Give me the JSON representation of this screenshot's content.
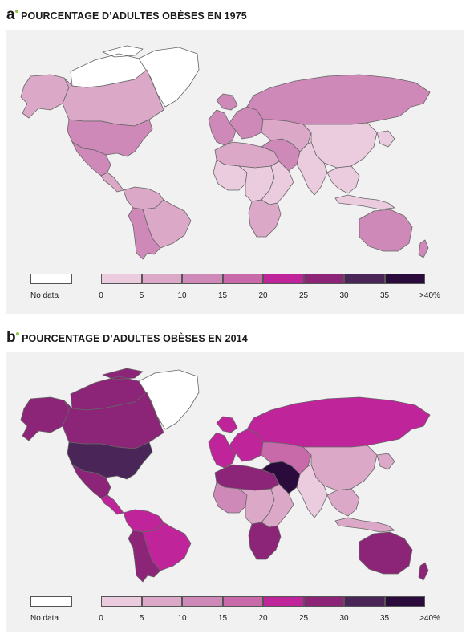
{
  "panels": [
    {
      "letter": "a",
      "title": "POURCENTAGE D’ADULTES OBÈSES EN 1975",
      "year": 1975,
      "regions": {
        "north-america-north": "nodata",
        "greenland": "nodata",
        "alaska": 1,
        "canada": 1,
        "usa": 2,
        "mexico": 2,
        "central-america": 1,
        "south-america-north": 1,
        "brazil": 1,
        "south-america-south": 2,
        "western-europe": 2,
        "eastern-europe": 2,
        "russia": 2,
        "north-africa": 1,
        "west-africa": 0,
        "central-africa": 0,
        "east-africa": 0,
        "southern-africa": 1,
        "middle-east": 2,
        "central-asia": 1,
        "china": 0,
        "india": 0,
        "southeast-asia": 0,
        "indonesia": 0,
        "australia": 2,
        "new-zealand": 2
      }
    },
    {
      "letter": "b",
      "title": "POURCENTAGE D’ADULTES OBÈSES EN 2014",
      "year": 2014,
      "regions": {
        "north-america-north": 5,
        "greenland": "nodata",
        "alaska": 5,
        "canada": 5,
        "usa": 6,
        "mexico": 5,
        "central-america": 4,
        "south-america-north": 4,
        "brazil": 4,
        "south-america-south": 5,
        "western-europe": 4,
        "eastern-europe": 4,
        "russia": 4,
        "north-africa": 5,
        "west-africa": 2,
        "central-africa": 1,
        "east-africa": 1,
        "southern-africa": 5,
        "middle-east": 7,
        "central-asia": 3,
        "china": 1,
        "india": 0,
        "southeast-asia": 1,
        "indonesia": 1,
        "australia": 5,
        "new-zealand": 5
      }
    }
  ],
  "legend": {
    "nodata_label": "No data",
    "nodata_color": "#ffffff",
    "colors": [
      "#ebcbde",
      "#dba8c8",
      "#cf89b9",
      "#c86aaa",
      "#c0249a",
      "#8c2478",
      "#4a2658",
      "#2a0b3c"
    ],
    "ticks": [
      "0",
      "5",
      "10",
      "15",
      "20",
      "25",
      "30",
      "35",
      ">40%"
    ]
  },
  "colors": {
    "map_background": "#f1f1f1",
    "border": "#666666",
    "accent_dot": "#8cc63f"
  }
}
